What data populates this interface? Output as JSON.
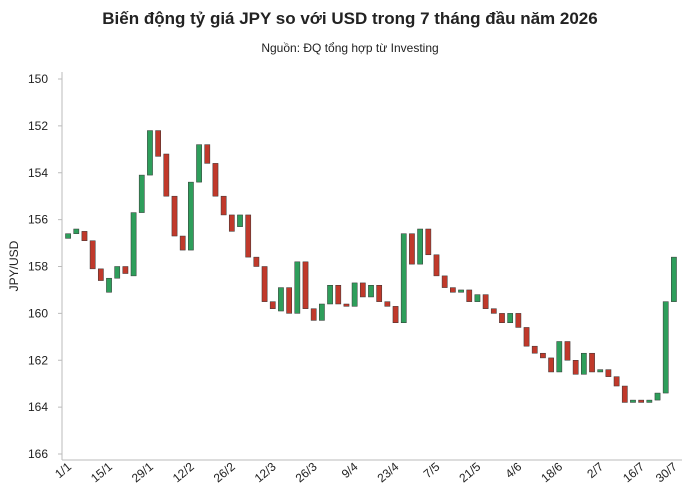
{
  "chart_data": {
    "type": "candlestick",
    "title": "Biến động tỷ giá JPY so với USD trong 7 tháng đầu năm 2026",
    "subtitle": "Nguồn:  ĐQ tổng hợp từ Investing",
    "y_label": "JPY/USD",
    "categories": [
      "1/1",
      null,
      null,
      null,
      null,
      "15/1",
      null,
      null,
      null,
      null,
      "29/1",
      null,
      null,
      null,
      null,
      "12/2",
      null,
      null,
      null,
      null,
      "26/2",
      null,
      null,
      null,
      null,
      "12/3",
      null,
      null,
      null,
      null,
      "26/3",
      null,
      null,
      null,
      null,
      "9/4",
      null,
      null,
      null,
      null,
      "23/4",
      null,
      null,
      null,
      null,
      "7/5",
      null,
      null,
      null,
      null,
      "21/5",
      null,
      null,
      null,
      null,
      "4/6",
      null,
      null,
      null,
      null,
      "18/6",
      null,
      null,
      null,
      null,
      "2/7",
      null,
      null,
      null,
      null,
      "16/7",
      null,
      null,
      null,
      "30/7"
    ],
    "open": [
      156.8,
      156.6,
      156.5,
      156.9,
      158.1,
      159.1,
      158.5,
      158.0,
      158.4,
      155.7,
      154.1,
      152.2,
      153.2,
      155.0,
      156.7,
      157.3,
      154.4,
      152.8,
      153.6,
      155.0,
      155.8,
      156.3,
      155.8,
      157.6,
      158.0,
      159.5,
      159.9,
      158.9,
      160.0,
      157.8,
      159.8,
      160.3,
      159.6,
      158.8,
      159.6,
      159.7,
      158.7,
      159.3,
      158.8,
      159.5,
      159.7,
      160.4,
      156.6,
      157.9,
      156.4,
      157.5,
      158.4,
      158.9,
      159.1,
      159.0,
      159.5,
      159.2,
      159.8,
      160.0,
      160.4,
      160.0,
      160.6,
      161.4,
      161.7,
      161.9,
      162.5,
      161.2,
      162.0,
      162.6,
      161.7,
      162.5,
      162.4,
      162.7,
      163.1,
      163.8,
      163.7,
      163.8,
      163.7,
      163.4,
      159.5
    ],
    "close": [
      156.6,
      156.4,
      156.9,
      158.1,
      158.6,
      158.5,
      158.0,
      158.3,
      155.7,
      154.1,
      152.2,
      153.3,
      155.0,
      156.7,
      157.3,
      154.4,
      152.8,
      153.6,
      155.0,
      155.8,
      156.5,
      155.8,
      157.6,
      158.0,
      159.5,
      159.8,
      158.9,
      160.0,
      157.8,
      159.8,
      160.3,
      159.6,
      158.8,
      159.6,
      159.7,
      158.7,
      159.3,
      158.8,
      159.5,
      159.7,
      160.4,
      156.6,
      157.9,
      156.4,
      157.5,
      158.4,
      158.9,
      159.1,
      159.0,
      159.5,
      159.2,
      159.8,
      160.0,
      160.4,
      160.0,
      160.6,
      161.4,
      161.7,
      161.9,
      162.5,
      161.2,
      162.0,
      162.6,
      161.7,
      162.5,
      162.4,
      162.7,
      163.1,
      163.8,
      163.7,
      163.8,
      163.7,
      163.4,
      159.5,
      157.6
    ],
    "rising_color": "#c0392b",
    "falling_color": "#2e9e5b",
    "ylim": [
      150,
      166
    ],
    "y_reversed": true,
    "yticks": [
      150,
      152,
      154,
      156,
      158,
      160,
      162,
      164,
      166
    ],
    "grid": false
  }
}
